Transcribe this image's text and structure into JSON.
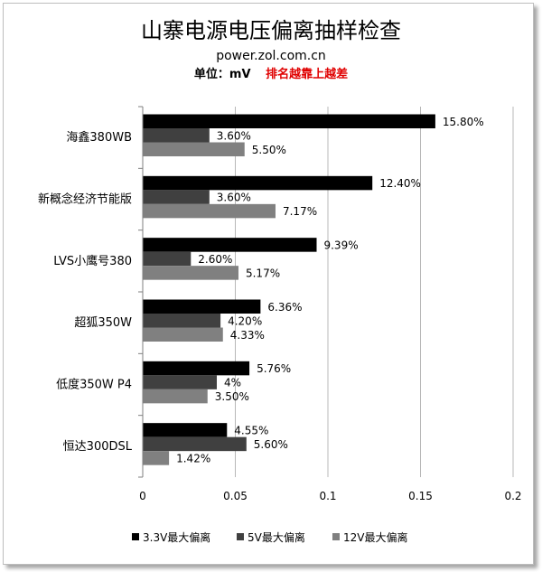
{
  "chart_data": {
    "type": "bar",
    "orientation": "horizontal",
    "title": "山寨电源电压偏离抽样检查",
    "subtitle": "power.zol.com.cn",
    "unit_label": "单位：mV",
    "note": "排名越靠上越差",
    "categories": [
      "海鑫380WB",
      "新概念经济节能版",
      "LVS小鹰号380",
      "超狐350W",
      "低度350W P4",
      "恒达300DSL"
    ],
    "series": [
      {
        "name": "3.3V最大偏离",
        "color": "#000000",
        "values": [
          0.158,
          0.124,
          0.0939,
          0.0636,
          0.0576,
          0.0455
        ],
        "labels": [
          "15.80%",
          "12.40%",
          "9.39%",
          "6.36%",
          "5.76%",
          "4.55%"
        ]
      },
      {
        "name": "5V最大偏离",
        "color": "#404040",
        "values": [
          0.036,
          0.036,
          0.026,
          0.042,
          0.04,
          0.056
        ],
        "labels": [
          "3.60%",
          "3.60%",
          "2.60%",
          "4.20%",
          "4%",
          "5.60%"
        ]
      },
      {
        "name": "12V最大偏离",
        "color": "#808080",
        "values": [
          0.055,
          0.0717,
          0.0517,
          0.0433,
          0.035,
          0.0142
        ],
        "labels": [
          "5.50%",
          "7.17%",
          "5.17%",
          "4.33%",
          "3.50%",
          "1.42%"
        ]
      }
    ],
    "xlim": [
      0,
      0.2
    ],
    "xticks": [
      "0",
      "0.05",
      "0.1",
      "0.15",
      "0.2"
    ],
    "gridlines": true,
    "legend_position": "bottom",
    "colors": {
      "note": "#e00000",
      "grid": "#b8b8b8",
      "axis": "#7f7f7f"
    }
  }
}
